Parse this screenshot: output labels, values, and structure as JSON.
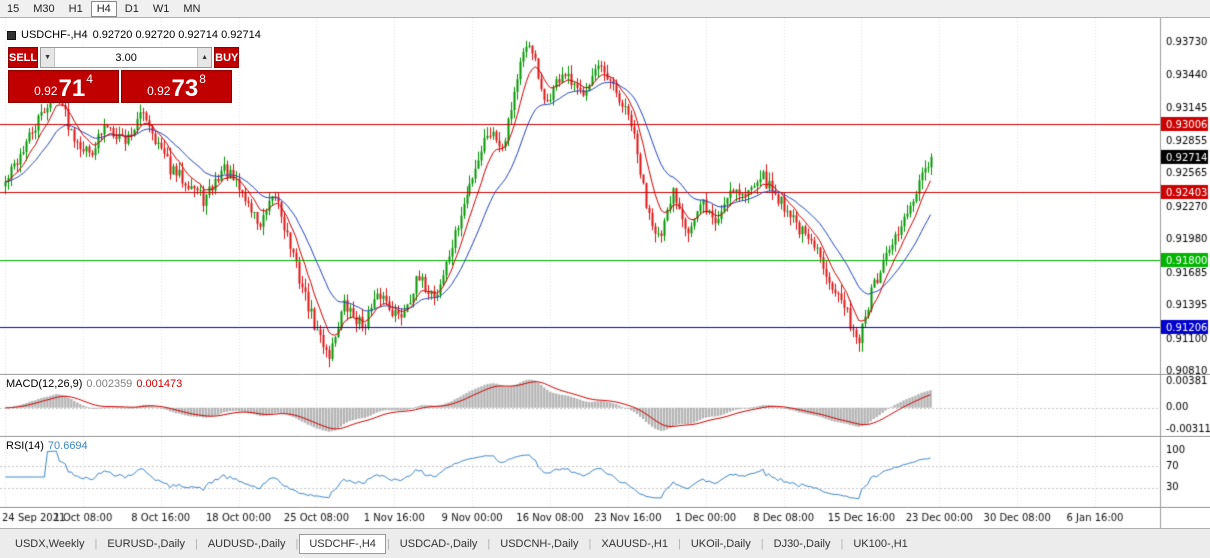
{
  "toolbar": {
    "timeframes": [
      {
        "label": "15",
        "active": false
      },
      {
        "label": "M30",
        "active": false
      },
      {
        "label": "H1",
        "active": false
      },
      {
        "label": "H4",
        "active": true
      },
      {
        "label": "D1",
        "active": false
      },
      {
        "label": "W1",
        "active": false
      },
      {
        "label": "MN",
        "active": false
      }
    ]
  },
  "chart": {
    "symbol_period": "USDCHF-,H4",
    "ohlc": "0.92720 0.92720 0.92714 0.92714"
  },
  "trade_panel": {
    "sell_label": "SELL",
    "buy_label": "BUY",
    "lot_size": "3.00",
    "lot_down_icon": "▼",
    "lot_up_icon": "▲",
    "sell_price": {
      "small": "0.92",
      "big": "71",
      "pip": "4"
    },
    "buy_price": {
      "small": "0.92",
      "big": "73",
      "pip": "8"
    },
    "panel_color": "#c00000"
  },
  "chart_data": [
    {
      "type": "candlestick",
      "title": "USDCHF-,H4",
      "ylim": [
        0.9078,
        0.93946
      ],
      "axis_ticks": [
        "0.93730",
        "0.93440",
        "0.93145",
        "0.92855",
        "0.92565",
        "0.92270",
        "0.91980",
        "0.91685",
        "0.91395",
        "0.91100",
        "0.90810"
      ],
      "hlines": [
        {
          "price": 0.93006,
          "label": "0.93006",
          "color": "#cc0000"
        },
        {
          "price": 0.92403,
          "label": "0.92403",
          "color": "#cc0000"
        },
        {
          "price": 0.918,
          "label": "0.91800",
          "color": "#00b400"
        },
        {
          "price": 0.91206,
          "label": "0.91206",
          "color": "#0000cc"
        }
      ],
      "current_price": {
        "value": 0.92714,
        "label": "0.92714",
        "bg": "#000000"
      },
      "up_color": "#009600",
      "down_color": "#dc1414",
      "ma_fast_color": "#cc0000",
      "ma_slow_color": "#2244bb",
      "n_candles": 310,
      "seed": 42,
      "price_keypoints": [
        [
          0,
          0.9248
        ],
        [
          0.015,
          0.9272
        ],
        [
          0.035,
          0.9302
        ],
        [
          0.055,
          0.9334
        ],
        [
          0.07,
          0.9296
        ],
        [
          0.09,
          0.9274
        ],
        [
          0.11,
          0.93
        ],
        [
          0.13,
          0.9286
        ],
        [
          0.15,
          0.9312
        ],
        [
          0.165,
          0.9282
        ],
        [
          0.18,
          0.9258
        ],
        [
          0.2,
          0.9248
        ],
        [
          0.215,
          0.9232
        ],
        [
          0.235,
          0.9262
        ],
        [
          0.255,
          0.924
        ],
        [
          0.275,
          0.921
        ],
        [
          0.292,
          0.9238
        ],
        [
          0.315,
          0.917
        ],
        [
          0.335,
          0.9118
        ],
        [
          0.35,
          0.9096
        ],
        [
          0.365,
          0.914
        ],
        [
          0.385,
          0.9122
        ],
        [
          0.405,
          0.915
        ],
        [
          0.425,
          0.9128
        ],
        [
          0.445,
          0.9162
        ],
        [
          0.465,
          0.9148
        ],
        [
          0.485,
          0.92
        ],
        [
          0.505,
          0.9256
        ],
        [
          0.522,
          0.9296
        ],
        [
          0.538,
          0.9282
        ],
        [
          0.556,
          0.9352
        ],
        [
          0.568,
          0.9374
        ],
        [
          0.582,
          0.9316
        ],
        [
          0.602,
          0.9346
        ],
        [
          0.62,
          0.9326
        ],
        [
          0.64,
          0.935
        ],
        [
          0.658,
          0.933
        ],
        [
          0.676,
          0.9302
        ],
        [
          0.692,
          0.9232
        ],
        [
          0.708,
          0.9196
        ],
        [
          0.722,
          0.9242
        ],
        [
          0.738,
          0.9206
        ],
        [
          0.754,
          0.923
        ],
        [
          0.768,
          0.9212
        ],
        [
          0.784,
          0.9246
        ],
        [
          0.8,
          0.9236
        ],
        [
          0.814,
          0.9258
        ],
        [
          0.83,
          0.924
        ],
        [
          0.846,
          0.9224
        ],
        [
          0.862,
          0.9202
        ],
        [
          0.878,
          0.9186
        ],
        [
          0.894,
          0.9158
        ],
        [
          0.91,
          0.913
        ],
        [
          0.922,
          0.9108
        ],
        [
          0.936,
          0.9152
        ],
        [
          0.95,
          0.9178
        ],
        [
          0.964,
          0.9204
        ],
        [
          0.98,
          0.923
        ],
        [
          1,
          0.92714
        ]
      ]
    },
    {
      "type": "macd",
      "label": "MACD(12,26,9)",
      "params": [
        12,
        26,
        9
      ],
      "value_main": "0.002359",
      "value_signal": "0.001473",
      "ylim": [
        -0.0042,
        0.0047
      ],
      "axis_ticks": [
        {
          "v": 0.00381,
          "label": "0.00381"
        },
        {
          "v": 0,
          "label": "0.00"
        },
        {
          "v": -0.00311,
          "label": "-0.00311"
        }
      ],
      "hist_color": "#b4b4b4",
      "signal_color": "#cc0000"
    },
    {
      "type": "rsi",
      "label": "RSI(14)",
      "period": 14,
      "value": "70.6694",
      "levels": [
        70,
        30
      ],
      "axis_ticks": [
        {
          "v": 100,
          "label": "100"
        },
        {
          "v": 70,
          "label": "70"
        },
        {
          "v": 30,
          "label": "30"
        }
      ],
      "line_color": "#3d85c8"
    }
  ],
  "timeline": {
    "labels": [
      "24 Sep 2021",
      "1 Oct 08:00",
      "8 Oct 16:00",
      "18 Oct 00:00",
      "25 Oct 08:00",
      "1 Nov 16:00",
      "9 Nov 00:00",
      "16 Nov 08:00",
      "23 Nov 16:00",
      "1 Dec 00:00",
      "8 Dec 08:00",
      "15 Dec 16:00",
      "23 Dec 00:00",
      "30 Dec 08:00",
      "6 Jan 16:00"
    ]
  },
  "tabs": [
    {
      "label": "USDX,Weekly",
      "active": false
    },
    {
      "label": "EURUSD-,Daily",
      "active": false
    },
    {
      "label": "AUDUSD-,Daily",
      "active": false
    },
    {
      "label": "USDCHF-,H4",
      "active": true
    },
    {
      "label": "USDCAD-,Daily",
      "active": false
    },
    {
      "label": "USDCNH-,Daily",
      "active": false
    },
    {
      "label": "XAUUSD-,H1",
      "active": false
    },
    {
      "label": "UKOil-,Daily",
      "active": false
    },
    {
      "label": "DJ30-,Daily",
      "active": false
    },
    {
      "label": "UK100-,H1",
      "active": false
    }
  ]
}
